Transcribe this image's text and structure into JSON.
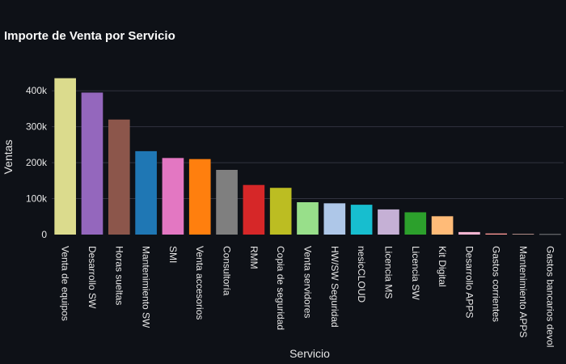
{
  "chart_data": {
    "type": "bar",
    "title": "Importe de Venta por Servicio",
    "xlabel": "Servicio",
    "ylabel": "Ventas",
    "ylim": [
      0,
      450000
    ],
    "yticks": [
      0,
      100000,
      200000,
      300000,
      400000
    ],
    "ytick_labels": [
      "0",
      "100k",
      "200k",
      "300k",
      "400k"
    ],
    "grid": true,
    "categories": [
      "Venta de equipos",
      "Desarrollo SW",
      "Horas sueltas",
      "Mantenimiento SW",
      "SMI",
      "Venta accesorios",
      "Consultoría",
      "RMM",
      "Copia de seguridad",
      "Venta servidores",
      "HW/SW Seguridad",
      "nesicCLOUD",
      "Licencia MS",
      "Licencia SW",
      "Kit Digital",
      "Desarrollo APPS",
      "Gastos corrientes",
      "Mantenimiento APPS",
      "Gastos bancarios devol"
    ],
    "values": [
      435000,
      395000,
      320000,
      232000,
      213000,
      210000,
      180000,
      138000,
      130000,
      90000,
      87000,
      83000,
      70000,
      62000,
      51000,
      7000,
      3000,
      2000,
      1000
    ],
    "colors": [
      "#dbdb8d",
      "#9467bd",
      "#8c564b",
      "#1f77b4",
      "#e377c2",
      "#ff7f0e",
      "#7f7f7f",
      "#d62728",
      "#bcbd22",
      "#98df8a",
      "#aec7e8",
      "#17becf",
      "#c5b0d5",
      "#2ca02c",
      "#ffbb78",
      "#f7b6d2",
      "#ff9896",
      "#c49c94",
      "#c7c7c7"
    ],
    "background": "#0e1117",
    "grid_color": "#31333f"
  }
}
